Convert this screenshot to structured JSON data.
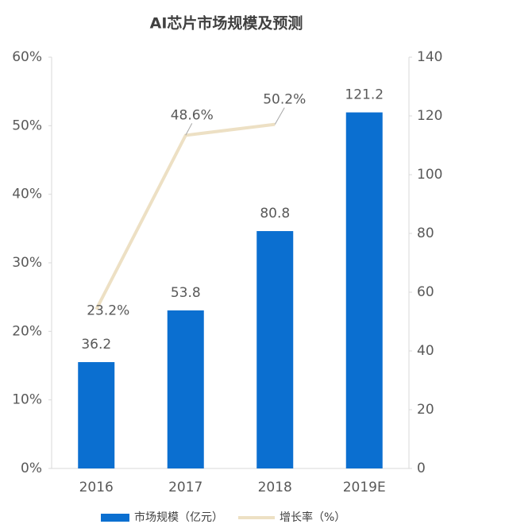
{
  "chart_data": {
    "type": "bar",
    "title": "AI芯片市场规模及预测",
    "categories": [
      "2016",
      "2017",
      "2018",
      "2019E"
    ],
    "series": [
      {
        "name": "市场规模（亿元）",
        "type": "bar",
        "color": "#0b6fd0",
        "axis": "y2",
        "values": [
          36.2,
          53.8,
          80.8,
          121.2
        ]
      },
      {
        "name": "增长率（%）",
        "type": "line",
        "color": "#ede0c4",
        "values": [
          23.2,
          48.6,
          50.2,
          null
        ],
        "value_labels": [
          "23.2%",
          "48.6%",
          "50.2%",
          null
        ]
      }
    ],
    "ylim": [
      0,
      60
    ],
    "yticks": [
      {
        "value": 0,
        "label": "0%"
      },
      {
        "value": 10,
        "label": "10%"
      },
      {
        "value": 20,
        "label": "20%"
      },
      {
        "value": 30,
        "label": "30%"
      },
      {
        "value": 40,
        "label": "40%"
      },
      {
        "value": 50,
        "label": "50%"
      },
      {
        "value": 60,
        "label": "60%"
      }
    ],
    "y2lim": [
      0,
      140
    ],
    "y2ticks": [
      0,
      20,
      40,
      60,
      80,
      100,
      120,
      140
    ],
    "legend": "bottom"
  }
}
